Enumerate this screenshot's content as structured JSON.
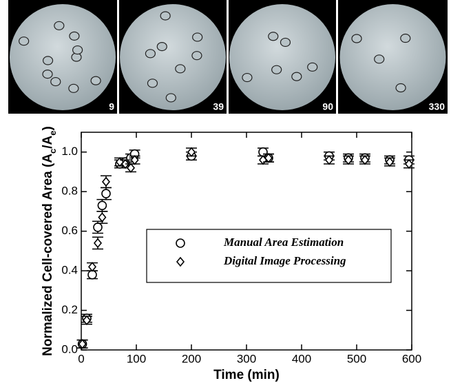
{
  "panels": [
    "9",
    "39",
    "90",
    "330"
  ],
  "chart_data": {
    "type": "scatter",
    "xlabel": "Time (min)",
    "ylabel": [
      {
        "text": "Normalized Cell-covered Area (A",
        "sub": false
      },
      {
        "text": "c",
        "sub": true
      },
      {
        "text": "/A",
        "sub": false
      },
      {
        "text": "e",
        "sub": true
      },
      {
        "text": ")",
        "sub": false
      }
    ],
    "x": [
      2,
      10,
      20,
      30,
      38,
      45,
      70,
      80,
      90,
      97,
      200,
      330,
      340,
      450,
      485,
      515,
      560,
      595
    ],
    "series": [
      {
        "name": "Manual Area Estimation",
        "marker": "circle",
        "color": "#000000",
        "values": [
          0.03,
          0.16,
          0.38,
          0.62,
          0.73,
          0.79,
          0.94,
          0.95,
          0.97,
          0.99,
          0.98,
          1.0,
          0.97,
          0.98,
          0.97,
          0.97,
          0.96,
          0.96
        ],
        "errors": [
          0.02,
          0.02,
          0.02,
          0.03,
          0.03,
          0.03,
          0.02,
          0.02,
          0.02,
          0.02,
          0.02,
          0.02,
          0.02,
          0.02,
          0.02,
          0.02,
          0.02,
          0.02
        ]
      },
      {
        "name": "Digital Image Processing",
        "marker": "diamond",
        "color": "#000000",
        "values": [
          0.03,
          0.15,
          0.42,
          0.54,
          0.67,
          0.85,
          0.95,
          0.94,
          0.92,
          0.96,
          1.0,
          0.96,
          0.97,
          0.96,
          0.96,
          0.96,
          0.95,
          0.94
        ],
        "errors": [
          0.02,
          0.02,
          0.02,
          0.03,
          0.03,
          0.03,
          0.02,
          0.02,
          0.02,
          0.02,
          0.02,
          0.02,
          0.02,
          0.02,
          0.02,
          0.02,
          0.02,
          0.02
        ]
      }
    ],
    "xlim": [
      0,
      600
    ],
    "ylim": [
      0,
      1.1
    ],
    "xticks": [
      0,
      100,
      200,
      300,
      400,
      500,
      600
    ],
    "yticks": [
      {
        "value": 0,
        "label": "0.0"
      },
      0.2,
      0.4,
      0.6,
      0.8,
      {
        "value": 1,
        "label": "1.0"
      }
    ],
    "legend": "center-right"
  }
}
